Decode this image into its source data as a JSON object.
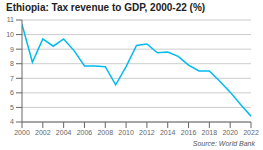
{
  "chart_data": {
    "type": "line",
    "title": "Ethiopia: Tax revenue to GDP, 2000-22 (%)",
    "annotation": "Source: World Bank",
    "x": [
      2000,
      2001,
      2002,
      2003,
      2004,
      2005,
      2006,
      2007,
      2008,
      2009,
      2010,
      2011,
      2012,
      2013,
      2014,
      2015,
      2016,
      2017,
      2018,
      2019,
      2020,
      2021,
      2022
    ],
    "values": [
      10.7,
      8.1,
      9.7,
      9.2,
      9.7,
      8.9,
      7.85,
      7.85,
      7.8,
      6.55,
      7.8,
      9.25,
      9.35,
      8.75,
      8.8,
      8.5,
      7.9,
      7.5,
      7.5,
      6.8,
      6.05,
      5.2,
      4.4
    ],
    "color": "#00BBEE",
    "xlim": [
      2000,
      2022
    ],
    "ylim": [
      4,
      11
    ],
    "xticks": [
      2000,
      2002,
      2004,
      2006,
      2008,
      2010,
      2012,
      2014,
      2016,
      2018,
      2020,
      2022
    ],
    "yticks": [
      4,
      5,
      6,
      7,
      8,
      9,
      10,
      11
    ],
    "grid": true
  }
}
